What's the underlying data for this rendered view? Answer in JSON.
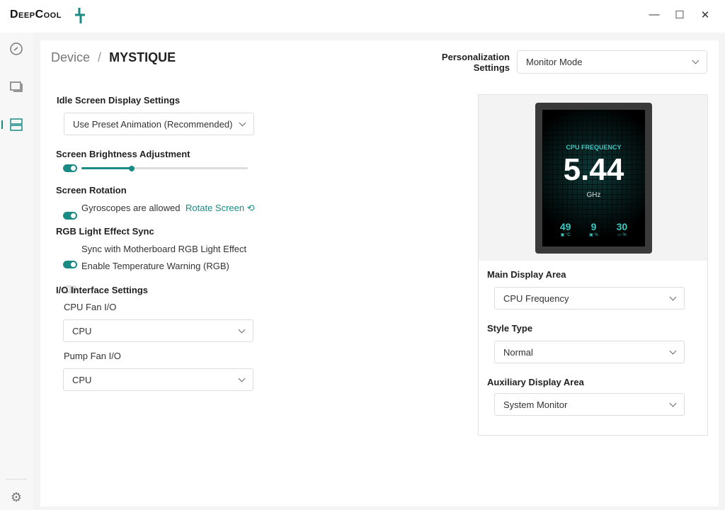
{
  "app": {
    "brand": "DeepCool",
    "accent": "#1a8a85"
  },
  "window": {
    "minimize": "—",
    "maximize": "☐",
    "close": "✕"
  },
  "sidebar": {
    "items": [
      {
        "icon": "dashboard-gauge-icon"
      },
      {
        "icon": "monitor-icon"
      },
      {
        "icon": "device-list-icon",
        "active": true
      }
    ],
    "settings_icon": "gear-icon"
  },
  "breadcrumb": {
    "parent": "Device",
    "separator": "/",
    "current": "MYSTIQUE"
  },
  "personalization": {
    "label_line1": "Personalization",
    "label_line2": "Settings",
    "value": "Monitor Mode"
  },
  "idle": {
    "label": "Idle Screen Display Settings",
    "value": "Use Preset Animation (Recommended)"
  },
  "brightness": {
    "label": "Screen Brightness Adjustment",
    "enabled": true,
    "level_percent": 30
  },
  "rotation": {
    "label": "Screen Rotation",
    "gyro_label": "Gyroscopes are allowed",
    "gyro_enabled": true,
    "rotate_link": "Rotate Screen"
  },
  "rgb": {
    "label": "RGB Light Effect Sync",
    "sync_label": "Sync with Motherboard RGB Light Effect",
    "sync_enabled": true,
    "temp_label": "Enable Temperature Warning (RGB)",
    "temp_enabled": false
  },
  "io": {
    "label": "I/O Interface Settings",
    "cpu_fan_label": "CPU Fan I/O",
    "cpu_fan_value": "CPU",
    "pump_fan_label": "Pump Fan I/O",
    "pump_fan_value": "CPU"
  },
  "preview": {
    "title": "CPU FREQUENCY",
    "value": "5.44",
    "unit": "GHz",
    "stats": [
      {
        "value": "49",
        "unit": "°C"
      },
      {
        "value": "9",
        "unit": "%"
      },
      {
        "value": "30",
        "unit": "%"
      }
    ]
  },
  "display": {
    "main_label": "Main Display Area",
    "main_value": "CPU Frequency",
    "style_label": "Style Type",
    "style_value": "Normal",
    "aux_label": "Auxiliary Display Area",
    "aux_value": "System Monitor"
  }
}
